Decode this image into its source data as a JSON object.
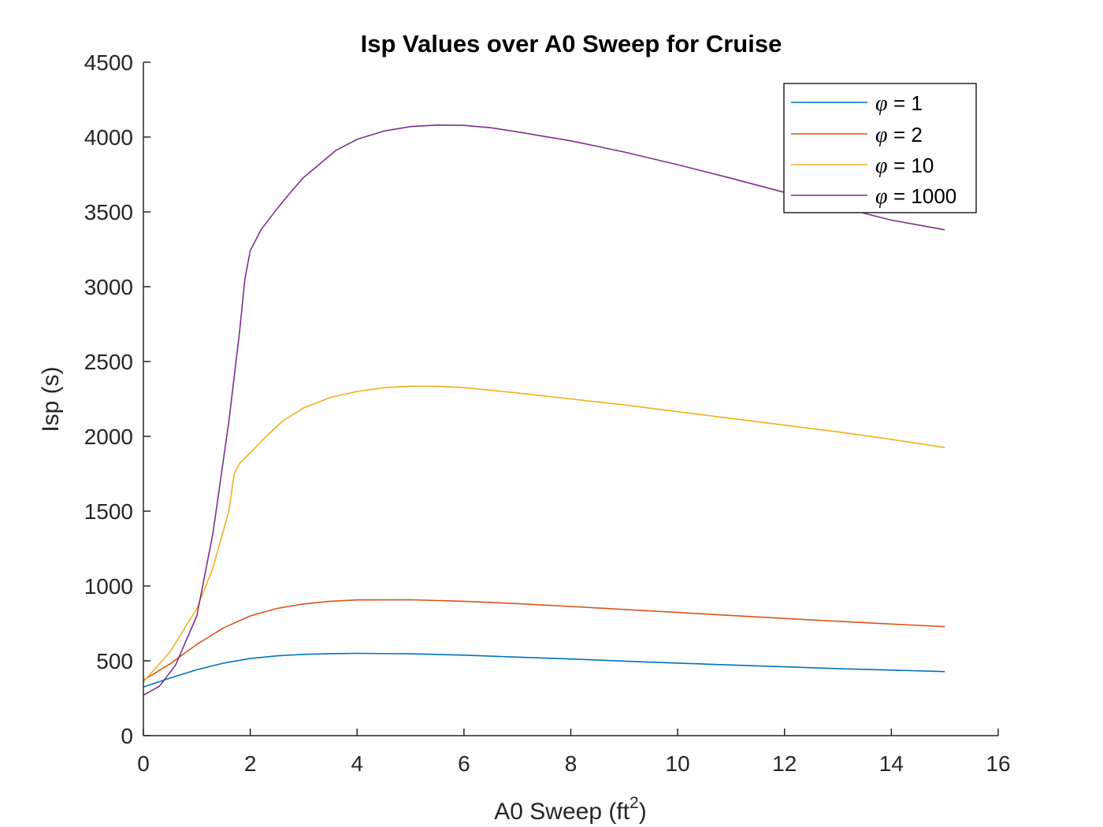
{
  "chart_data": {
    "type": "line",
    "title": "Isp Values over A0 Sweep for Cruise",
    "xlabel": "A0 Sweep (ft",
    "xlabel_sup": "2",
    "xlabel_close": ")",
    "ylabel": "Isp (s)",
    "xlim": [
      0,
      16
    ],
    "ylim": [
      0,
      4500
    ],
    "xticks": [
      0,
      2,
      4,
      6,
      8,
      10,
      12,
      14,
      16
    ],
    "yticks": [
      0,
      500,
      1000,
      1500,
      2000,
      2500,
      3000,
      3500,
      4000,
      4500
    ],
    "grid": false,
    "legend_position": "top-right",
    "legend_symbol": "φ",
    "series": [
      {
        "name": "= 1",
        "color": "#0072BD",
        "x": [
          0,
          0.5,
          1,
          1.5,
          2,
          2.5,
          3,
          3.5,
          4,
          5,
          6,
          7,
          8,
          9,
          10,
          11,
          12,
          13,
          14,
          15
        ],
        "y": [
          325,
          385,
          440,
          485,
          515,
          533,
          543,
          548,
          550,
          547,
          538,
          525,
          512,
          498,
          485,
          472,
          460,
          448,
          438,
          428
        ]
      },
      {
        "name": "= 2",
        "color": "#D95319",
        "x": [
          0,
          0.5,
          1,
          1.5,
          2,
          2.5,
          3,
          3.5,
          4,
          5,
          6,
          7,
          8,
          9,
          10,
          11,
          12,
          13,
          14,
          15
        ],
        "y": [
          370,
          480,
          610,
          720,
          800,
          850,
          880,
          898,
          907,
          908,
          898,
          882,
          863,
          843,
          823,
          803,
          783,
          764,
          746,
          728
        ]
      },
      {
        "name": "= 10",
        "color": "#EDB120",
        "x": [
          0,
          0.5,
          1,
          1.3,
          1.6,
          1.7,
          1.8,
          2,
          2.3,
          2.6,
          3,
          3.5,
          4,
          4.5,
          5,
          5.5,
          6,
          7,
          8,
          9,
          10,
          11,
          12,
          13,
          14,
          15
        ],
        "y": [
          360,
          560,
          850,
          1120,
          1500,
          1750,
          1820,
          1890,
          2000,
          2100,
          2190,
          2260,
          2300,
          2325,
          2335,
          2335,
          2325,
          2290,
          2250,
          2210,
          2165,
          2120,
          2075,
          2030,
          1980,
          1925
        ]
      },
      {
        "name": "= 1000",
        "color": "#7E2F8E",
        "x": [
          0,
          0.3,
          0.6,
          1,
          1.3,
          1.6,
          1.8,
          1.9,
          2,
          2.2,
          2.5,
          2.8,
          3,
          3.3,
          3.6,
          4,
          4.5,
          5,
          5.5,
          6,
          6.5,
          7,
          8,
          9,
          10,
          11,
          12,
          13,
          14,
          15
        ],
        "y": [
          270,
          330,
          470,
          800,
          1350,
          2100,
          2700,
          3050,
          3240,
          3380,
          3520,
          3650,
          3730,
          3820,
          3910,
          3985,
          4040,
          4070,
          4080,
          4078,
          4062,
          4035,
          3975,
          3900,
          3815,
          3725,
          3630,
          3535,
          3445,
          3380
        ]
      }
    ]
  }
}
